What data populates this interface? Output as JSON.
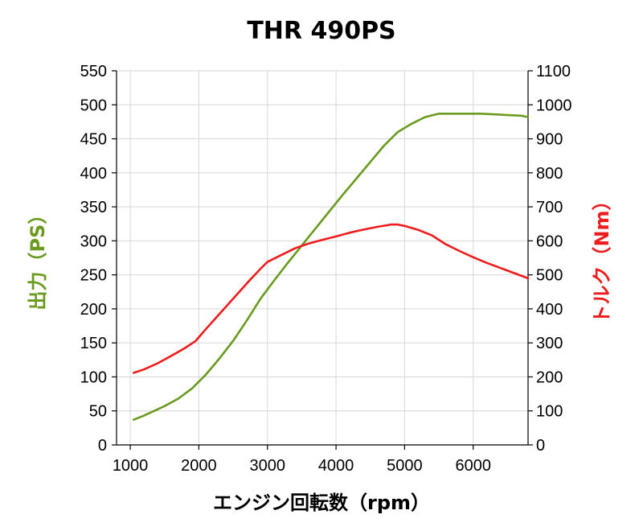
{
  "chart_data": {
    "type": "line",
    "title": "THR 490PS",
    "xlabel": "エンジン回転数（rpm）",
    "ylabel_left": "出力（PS）",
    "ylabel_right": "トルク（Nm）",
    "xlim": [
      800,
      6800
    ],
    "ylim_left": [
      0,
      550
    ],
    "ylim_right": [
      0,
      1100
    ],
    "x_ticks": [
      "1000",
      "2000",
      "3000",
      "4000",
      "5000",
      "6000"
    ],
    "y_ticks_left": [
      "0",
      "50",
      "100",
      "150",
      "200",
      "250",
      "300",
      "350",
      "400",
      "450",
      "500",
      "550"
    ],
    "y_ticks_right": [
      "0",
      "100",
      "200",
      "300",
      "400",
      "500",
      "600",
      "700",
      "800",
      "900",
      "1000",
      "1100"
    ],
    "grid": true,
    "series": [
      {
        "color": "#6a9a1f",
        "axis": "left",
        "x": [
          1050,
          1200,
          1500,
          1700,
          1900,
          2100,
          2300,
          2500,
          2700,
          2900,
          3100,
          3300,
          3500,
          3700,
          3900,
          4100,
          4300,
          4500,
          4700,
          4900,
          5100,
          5300,
          5500,
          5700,
          5900,
          6100,
          6300,
          6500,
          6700,
          6800
        ],
        "y": [
          37,
          43,
          57,
          68,
          83,
          103,
          127,
          153,
          183,
          215,
          242,
          268,
          293,
          318,
          343,
          368,
          392,
          416,
          440,
          460,
          472,
          482,
          487,
          487,
          487,
          487,
          486,
          485,
          484,
          482
        ]
      },
      {
        "color": "#ee1c1c",
        "axis": "right",
        "x": [
          1050,
          1200,
          1400,
          1600,
          1800,
          1950,
          2100,
          2300,
          2500,
          2700,
          2900,
          3000,
          3200,
          3400,
          3600,
          3800,
          4000,
          4200,
          4400,
          4600,
          4800,
          4900,
          5000,
          5200,
          5400,
          5600,
          5800,
          6000,
          6200,
          6400,
          6600,
          6800
        ],
        "y": [
          212,
          222,
          240,
          262,
          285,
          305,
          340,
          385,
          430,
          475,
          518,
          538,
          558,
          578,
          592,
          603,
          613,
          624,
          633,
          641,
          648,
          648,
          644,
          632,
          616,
          590,
          570,
          552,
          535,
          520,
          505,
          490
        ]
      }
    ]
  }
}
